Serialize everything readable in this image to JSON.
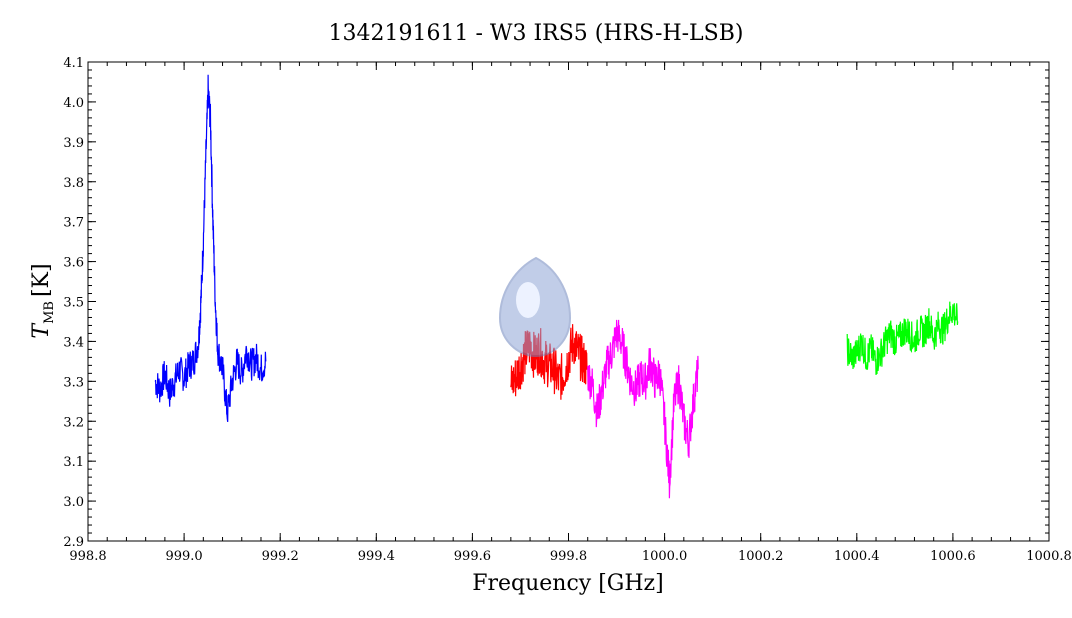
{
  "chart_data": {
    "type": "line",
    "title": "1342191611 - W3 IRS5 (HRS-H-LSB)",
    "xlabel": "Frequency [GHz]",
    "ylabel_main": "T",
    "ylabel_sub": "MB",
    "ylabel_unit": "[K]",
    "xlim": [
      998.8,
      1000.8
    ],
    "ylim": [
      2.9,
      4.1
    ],
    "xticks": [
      998.8,
      999.0,
      999.2,
      999.4,
      999.6,
      999.8,
      1000.0,
      1000.2,
      1000.4,
      1000.6,
      1000.8
    ],
    "xtick_labels": [
      "998.8",
      "999.0",
      "999.2",
      "999.4",
      "999.6",
      "999.8",
      "1000.0",
      "1000.2",
      "1000.4",
      "1000.6",
      "1000.8"
    ],
    "yticks": [
      2.9,
      3.0,
      3.1,
      3.2,
      3.3,
      3.4,
      3.5,
      3.6,
      3.7,
      3.8,
      3.9,
      4.0,
      4.1
    ],
    "ytick_labels": [
      "2.9",
      "3.0",
      "3.1",
      "3.2",
      "3.3",
      "3.4",
      "3.5",
      "3.6",
      "3.7",
      "3.8",
      "3.9",
      "4.0",
      "4.1"
    ],
    "grid": false,
    "series": [
      {
        "color": "#0000ff",
        "x": [
          998.94,
          998.95,
          998.96,
          998.97,
          998.98,
          998.99,
          999.0,
          999.01,
          999.02,
          999.03,
          999.035,
          999.04,
          999.045,
          999.05,
          999.055,
          999.06,
          999.065,
          999.07,
          999.08,
          999.09,
          999.1,
          999.11,
          999.12,
          999.13,
          999.14,
          999.15,
          999.16,
          999.17
        ],
        "y": [
          3.3,
          3.28,
          3.32,
          3.27,
          3.3,
          3.33,
          3.31,
          3.34,
          3.35,
          3.4,
          3.5,
          3.65,
          3.85,
          4.03,
          3.95,
          3.7,
          3.5,
          3.38,
          3.33,
          3.22,
          3.3,
          3.35,
          3.32,
          3.38,
          3.34,
          3.36,
          3.33,
          3.35
        ],
        "noise": 0.04
      },
      {
        "color": "#ff0000",
        "x": [
          999.68,
          999.69,
          999.7,
          999.71,
          999.72,
          999.73,
          999.74,
          999.75,
          999.76,
          999.77,
          999.78,
          999.79,
          999.8,
          999.81,
          999.82,
          999.83,
          999.84
        ],
        "y": [
          3.29,
          3.31,
          3.34,
          3.37,
          3.39,
          3.36,
          3.38,
          3.35,
          3.34,
          3.33,
          3.3,
          3.32,
          3.36,
          3.4,
          3.37,
          3.35,
          3.33
        ],
        "noise": 0.06
      },
      {
        "color": "#ff00ff",
        "x": [
          999.84,
          999.85,
          999.86,
          999.87,
          999.88,
          999.89,
          999.9,
          999.91,
          999.92,
          999.93,
          999.94,
          999.95,
          999.96,
          999.97,
          999.98,
          999.99,
          1000.0,
          1000.01,
          1000.02,
          1000.03,
          1000.04,
          1000.05,
          1000.06,
          1000.07
        ],
        "y": [
          3.32,
          3.29,
          3.22,
          3.28,
          3.34,
          3.37,
          3.42,
          3.4,
          3.35,
          3.3,
          3.28,
          3.31,
          3.3,
          3.35,
          3.3,
          3.32,
          3.2,
          3.05,
          3.25,
          3.3,
          3.2,
          3.15,
          3.25,
          3.33
        ],
        "noise": 0.05
      },
      {
        "color": "#00ff00",
        "x": [
          1000.38,
          1000.39,
          1000.4,
          1000.41,
          1000.42,
          1000.43,
          1000.44,
          1000.45,
          1000.46,
          1000.47,
          1000.48,
          1000.49,
          1000.5,
          1000.51,
          1000.52,
          1000.53,
          1000.54,
          1000.55,
          1000.56,
          1000.57,
          1000.58,
          1000.59,
          1000.6,
          1000.61
        ],
        "y": [
          3.38,
          3.36,
          3.37,
          3.4,
          3.36,
          3.38,
          3.35,
          3.37,
          3.4,
          3.42,
          3.4,
          3.41,
          3.43,
          3.42,
          3.4,
          3.43,
          3.42,
          3.45,
          3.41,
          3.44,
          3.43,
          3.46,
          3.48,
          3.45
        ],
        "noise": 0.04
      }
    ]
  }
}
